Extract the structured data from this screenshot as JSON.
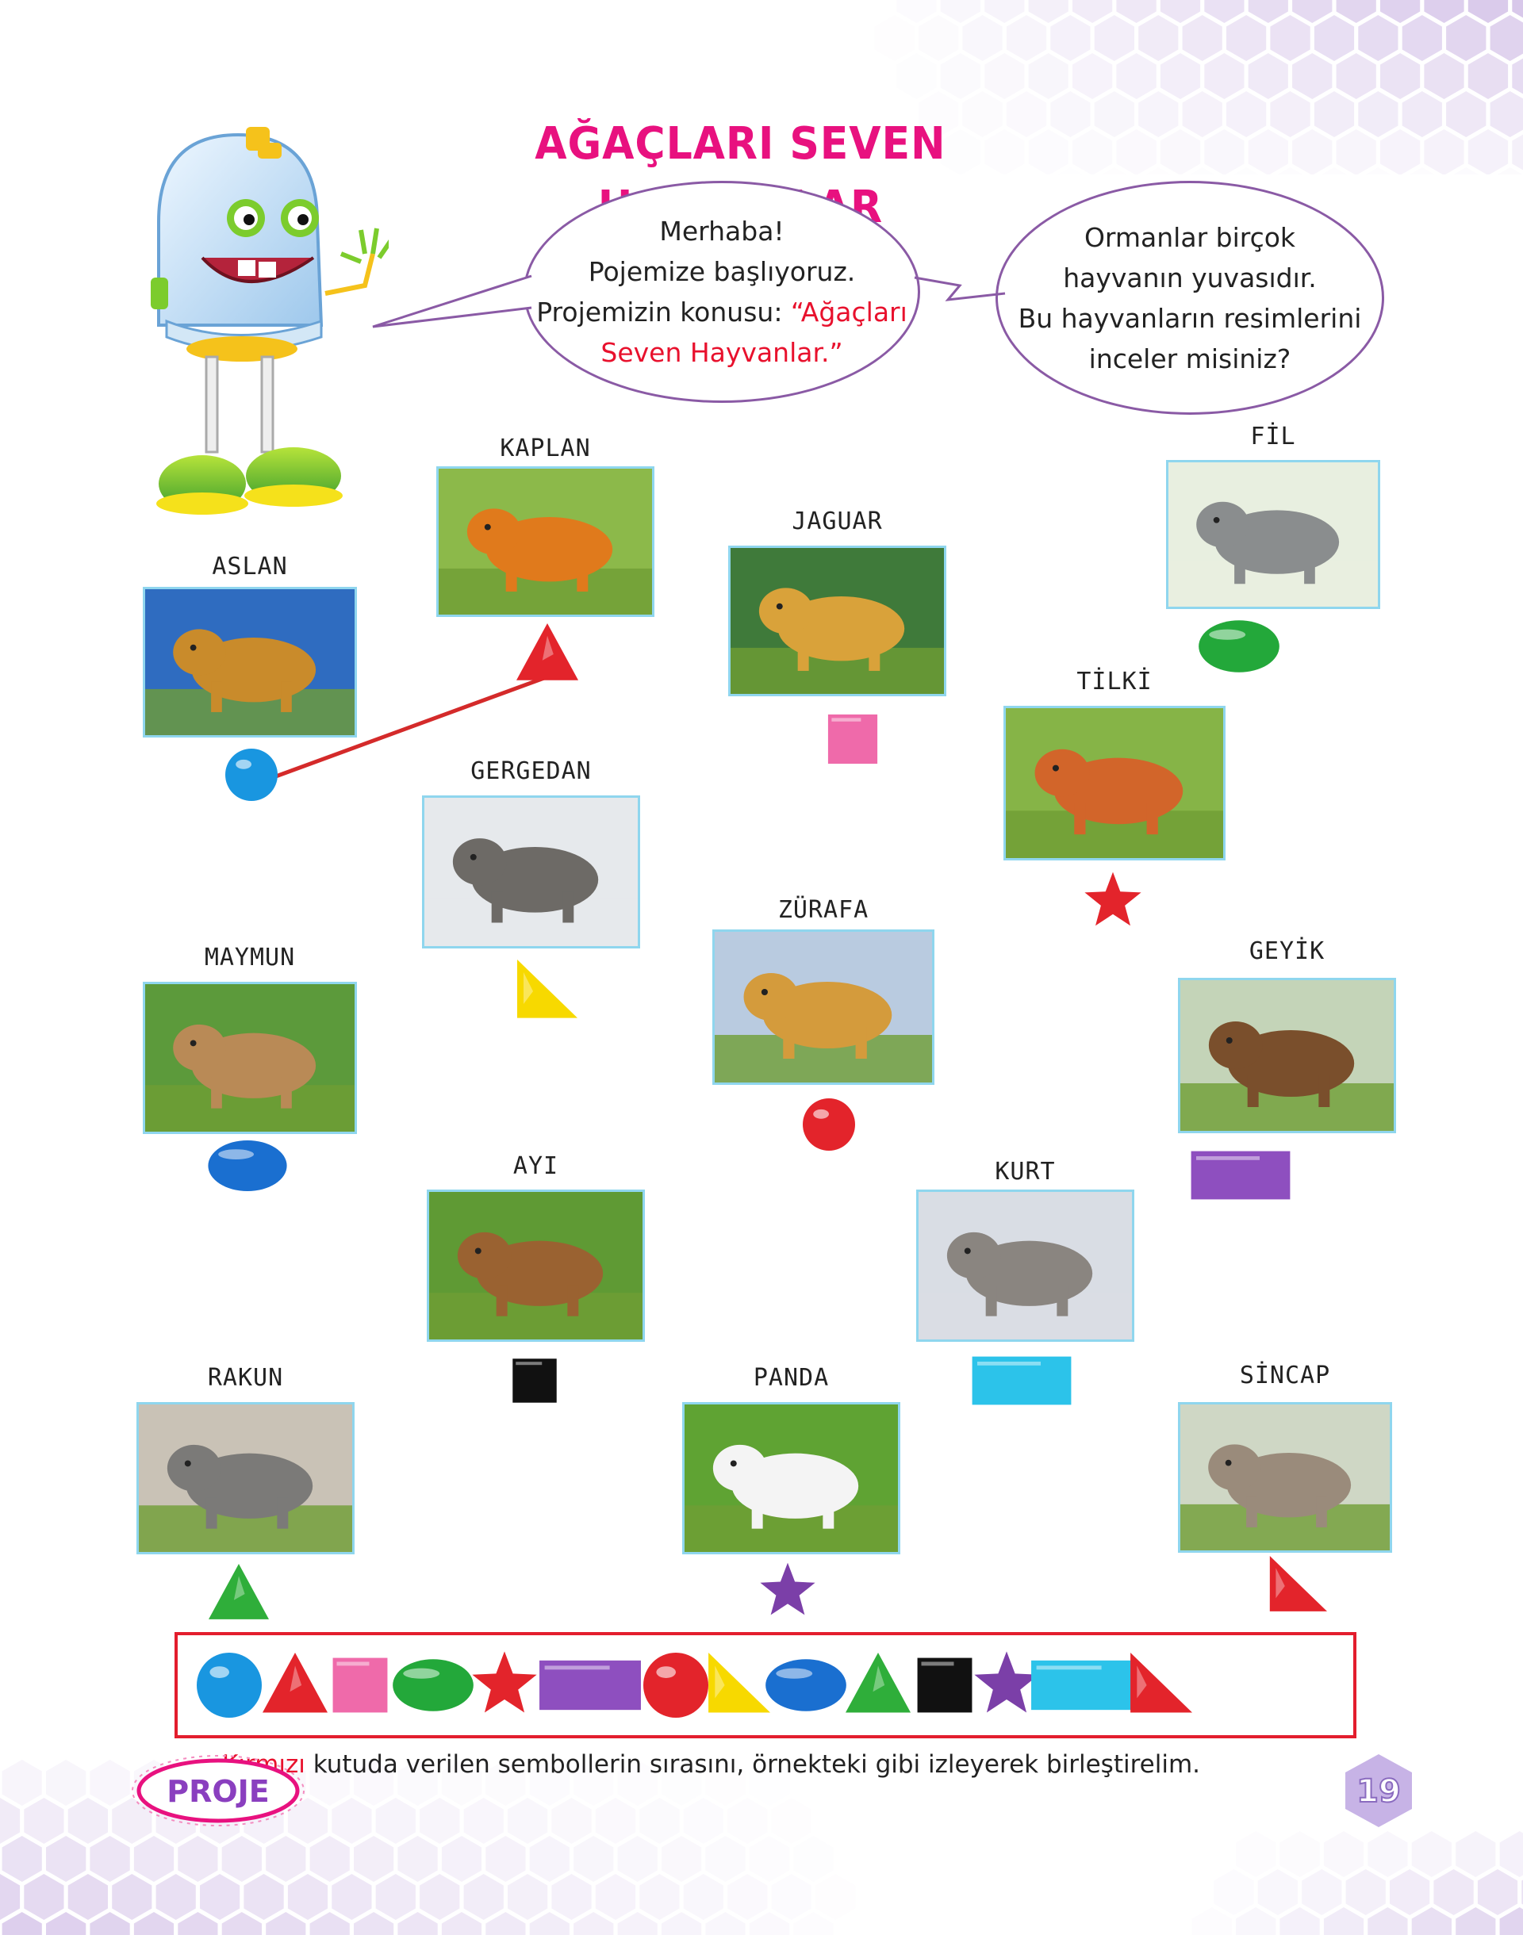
{
  "title": "AĞAÇLARI SEVEN HAYVANLAR",
  "bubble_left": {
    "line1": "Merhaba!",
    "line2": "Pojemize başlıyoruz.",
    "line3_prefix": "Projemizin konusu: ",
    "line3_red": "“Ağaçları",
    "line4_red": "Seven Hayvanlar.”"
  },
  "bubble_right": {
    "line1": "Ormanlar birçok",
    "line2": "hayvanın yuvasıdır.",
    "line3": "Bu hayvanların resimlerini",
    "line4": "inceler misiniz?"
  },
  "animals": [
    {
      "name": "KAPLAN",
      "symbol": "triangle",
      "color": "#e3242b"
    },
    {
      "name": "FİL",
      "symbol": "ellipse",
      "color": "#23a83a"
    },
    {
      "name": "JAGUAR",
      "symbol": "square",
      "color": "#ef6aaa"
    },
    {
      "name": "ASLAN",
      "symbol": "circle",
      "color": "#1996e0"
    },
    {
      "name": "TİLKİ",
      "symbol": "star",
      "color": "#e3242b"
    },
    {
      "name": "GERGEDAN",
      "symbol": "right-triangle",
      "color": "#f7d900"
    },
    {
      "name": "ZÜRAFA",
      "symbol": "circle",
      "color": "#e3242b"
    },
    {
      "name": "MAYMUN",
      "symbol": "ellipse",
      "color": "#1a6fd0"
    },
    {
      "name": "GEYİK",
      "symbol": "rectangle",
      "color": "#8e4fbf"
    },
    {
      "name": "AYI",
      "symbol": "square",
      "color": "#111111"
    },
    {
      "name": "KURT",
      "symbol": "rectangle",
      "color": "#2cc3ea"
    },
    {
      "name": "RAKUN",
      "symbol": "triangle",
      "color": "#2fae3a"
    },
    {
      "name": "PANDA",
      "symbol": "star",
      "color": "#7b3fa8"
    },
    {
      "name": "SİNCAP",
      "symbol": "right-triangle",
      "color": "#e3242b"
    }
  ],
  "sequence": [
    {
      "shape": "circle",
      "color": "#1996e0"
    },
    {
      "shape": "triangle",
      "color": "#e3242b"
    },
    {
      "shape": "square",
      "color": "#ef6aaa"
    },
    {
      "shape": "ellipse",
      "color": "#23a83a"
    },
    {
      "shape": "star",
      "color": "#e3242b"
    },
    {
      "shape": "rectangle",
      "color": "#8e4fbf"
    },
    {
      "shape": "circle",
      "color": "#e3242b"
    },
    {
      "shape": "right-triangle",
      "color": "#f7d900"
    },
    {
      "shape": "ellipse",
      "color": "#1a6fd0"
    },
    {
      "shape": "triangle",
      "color": "#2fae3a"
    },
    {
      "shape": "square",
      "color": "#111111"
    },
    {
      "shape": "star",
      "color": "#7b3fa8"
    },
    {
      "shape": "rectangle",
      "color": "#2cc3ea"
    },
    {
      "shape": "right-triangle",
      "color": "#e3242b"
    }
  ],
  "instruction": {
    "red": "Kırmızı",
    "rest": " kutuda verilen sembollerin sırasını,  örnekteki gibi izleyerek birleştirelim."
  },
  "footer": {
    "badge": "PROJE",
    "page_number": "19"
  },
  "colors": {
    "title": "#e8117f",
    "bubble_border": "#8a5aa5",
    "box_border": "#e31d2d",
    "photo_border": "#8fd6ee",
    "connector_line": "#d42a2a",
    "hex_pattern": "#d8c8ea"
  }
}
